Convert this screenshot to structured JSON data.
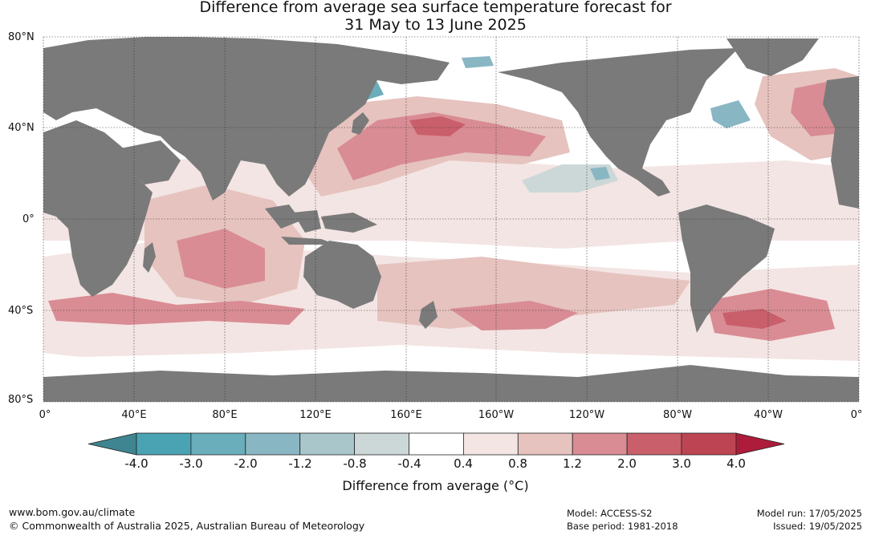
{
  "title_line1": "Difference from average sea surface temperature forecast for",
  "title_line2": "31 May to 13 June 2025",
  "lat_labels": [
    "80°N",
    "40°N",
    "0°",
    "40°S",
    "80°S"
  ],
  "lon_labels": [
    "0°",
    "40°E",
    "80°E",
    "120°E",
    "160°E",
    "160°W",
    "120°W",
    "80°W",
    "40°W",
    "0°"
  ],
  "colorbar": {
    "title": "Difference from average (°C)",
    "tick_labels": [
      "-4.0",
      "-3.0",
      "-2.0",
      "-1.2",
      "-0.8",
      "-0.4",
      "0.4",
      "0.8",
      "1.2",
      "2.0",
      "3.0",
      "4.0"
    ],
    "colors": [
      "#3f8591",
      "#4aa3b3",
      "#6aadbb",
      "#89b6c3",
      "#a9c6cb",
      "#ccd7d8",
      "#ffffff",
      "#f3e5e3",
      "#e6c3bf",
      "#d98c94",
      "#c95f6b",
      "#bd4553",
      "#ad1c3a"
    ]
  },
  "footer": {
    "website": "www.bom.gov.au/climate",
    "copyright": "© Commonwealth of Australia 2025, Australian Bureau of Meteorology",
    "model": "Model: ACCESS-S2",
    "base_period": "Base period: 1981-2018",
    "model_run": "Model run: 17/05/2025",
    "issued": "Issued: 19/05/2025"
  },
  "colors": {
    "land": "#7a7a7a",
    "ocean_neutral": "#ffffff",
    "warm_light": "#f3e5e3",
    "warm_mid": "#e6c3bf",
    "warm_strong": "#d98c94",
    "warm_hot": "#c95f6b",
    "cool_light": "#ccd7d8",
    "cool_mid": "#89b6c3"
  }
}
